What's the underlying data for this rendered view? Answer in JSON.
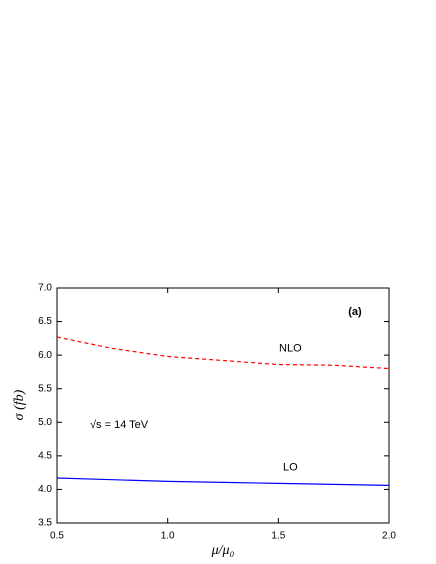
{
  "chart_data": {
    "type": "line",
    "xlabel": "μ/μ₀",
    "ylabel": "σ (fb)",
    "annotations": [
      "(a)",
      "√s = 14 TeV"
    ],
    "x": [
      0.5,
      0.75,
      1.0,
      1.25,
      1.5,
      1.75,
      2.0
    ],
    "series": [
      {
        "name": "NLO",
        "color": "#ff0000",
        "dash": true,
        "values": [
          6.27,
          6.1,
          5.98,
          5.92,
          5.86,
          5.85,
          5.8
        ]
      },
      {
        "name": "LO",
        "color": "#0000ff",
        "dash": false,
        "values": [
          4.17,
          4.145,
          4.12,
          4.105,
          4.09,
          4.075,
          4.06
        ]
      }
    ],
    "xlim": [
      0.5,
      2.0
    ],
    "xticks": [
      0.5,
      {
        "value": 1.0,
        "label": "1.0"
      },
      1.5,
      {
        "value": 2.0,
        "label": "2.0"
      }
    ],
    "ylim": [
      3.5,
      7.0
    ],
    "yticks": [
      3.5,
      {
        "value": 4.0,
        "label": "4.0"
      },
      4.5,
      {
        "value": 5.0,
        "label": "5.0"
      },
      5.5,
      {
        "value": 6.0,
        "label": "6.0"
      },
      6.5,
      {
        "value": 7.0,
        "label": "7.0"
      }
    ]
  }
}
